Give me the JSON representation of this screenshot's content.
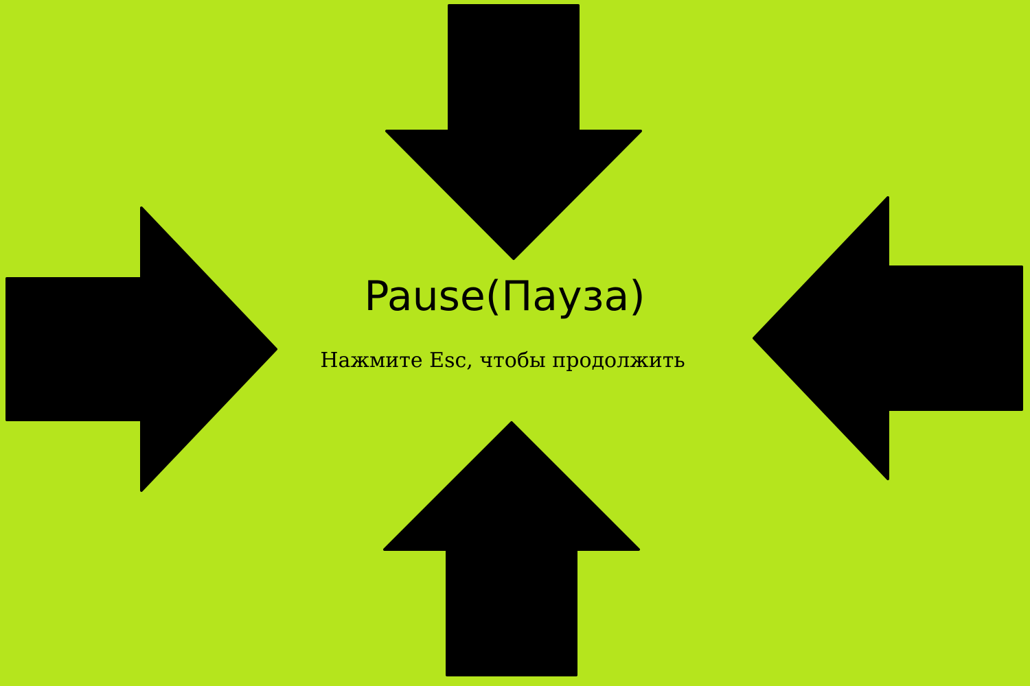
{
  "screen": {
    "title": "Pause(Пауза)",
    "hint": "Нажмите Esc, чтобы продолжить"
  },
  "colors": {
    "background": "#b5e51d",
    "arrow": "#000000",
    "text": "#000000"
  },
  "icons": {
    "top": "arrow-down-icon",
    "bottom": "arrow-up-icon",
    "left": "arrow-right-icon",
    "right": "arrow-left-icon"
  }
}
